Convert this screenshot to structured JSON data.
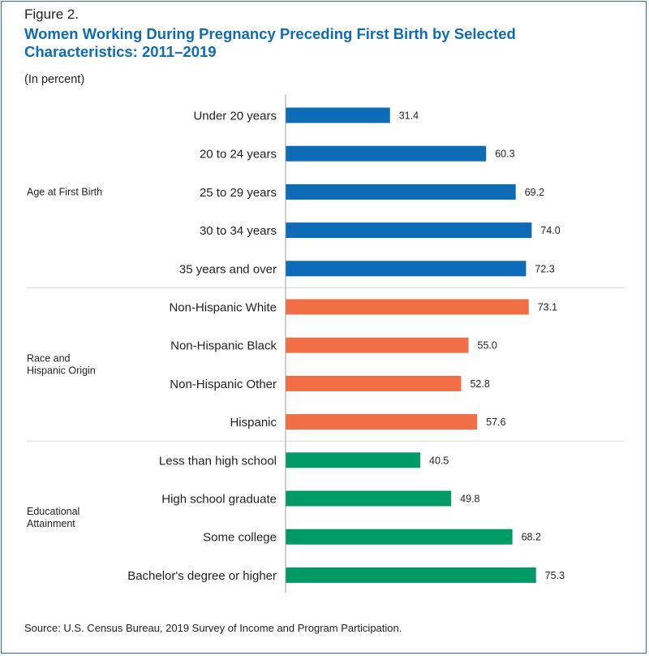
{
  "figure_label": "Figure 2.",
  "title": "Women Working During Pregnancy Preceding First Birth by Selected Characteristics: 2011–2019",
  "subtitle": "(In percent)",
  "source": "Source: U.S. Census Bureau, 2019 Survey of Income and Program Participation.",
  "colors": {
    "age": "#0e6cb6",
    "race": "#f26e45",
    "education": "#009a66",
    "border": "#2e6da4"
  },
  "chart_data": {
    "type": "bar",
    "orientation": "horizontal",
    "xlim": [
      0,
      100
    ],
    "grid": false,
    "value_labels": true,
    "groups": [
      {
        "label_lines": [
          "Age at First Birth"
        ],
        "color_key": "age",
        "categories": [
          "Under 20 years",
          "20 to 24 years",
          "25 to 29 years",
          "30 to 34 years",
          "35 years and over"
        ],
        "values": [
          31.4,
          60.3,
          69.2,
          74.0,
          72.3
        ],
        "value_labels": [
          "31.4",
          "60.3",
          "69.2",
          "74.0",
          "72.3"
        ]
      },
      {
        "label_lines": [
          "Race and",
          "Hispanic Origin"
        ],
        "color_key": "race",
        "categories": [
          "Non-Hispanic White",
          "Non-Hispanic Black",
          "Non-Hispanic Other",
          "Hispanic"
        ],
        "values": [
          73.1,
          55.0,
          52.8,
          57.6
        ],
        "value_labels": [
          "73.1",
          "55.0",
          "52.8",
          "57.6"
        ]
      },
      {
        "label_lines": [
          "Educational",
          "Attainment"
        ],
        "color_key": "education",
        "categories": [
          "Less than high school",
          "High school graduate",
          "Some college",
          "Bachelor's degree or higher"
        ],
        "values": [
          40.5,
          49.8,
          68.2,
          75.3
        ],
        "value_labels": [
          "40.5",
          "49.8",
          "68.2",
          "75.3"
        ]
      }
    ]
  }
}
